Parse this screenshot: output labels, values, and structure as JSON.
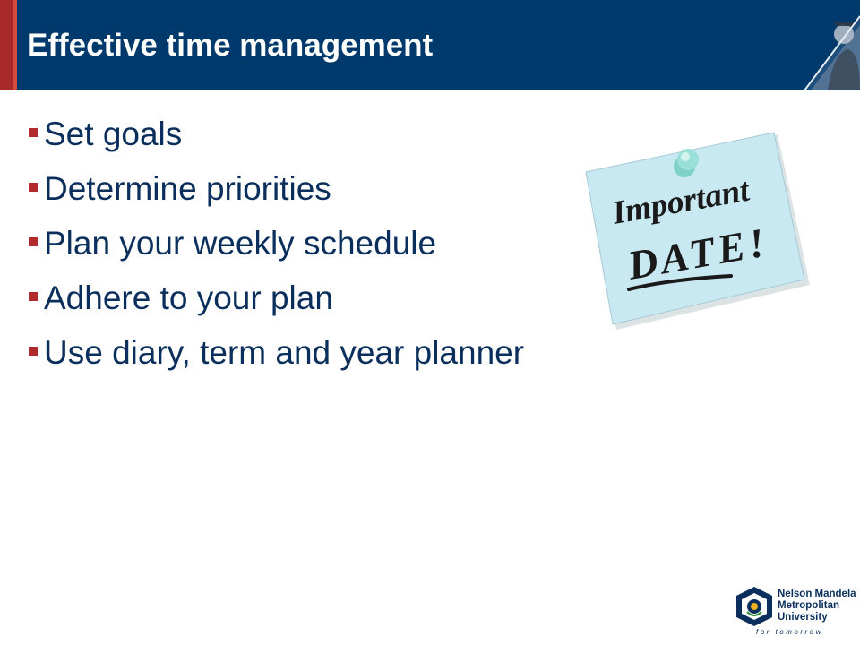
{
  "slide": {
    "title": "Effective time management",
    "bullets": [
      "Set goals",
      "Determine priorities",
      "Plan your weekly schedule",
      "Adhere to your plan",
      "Use diary, term and year planner"
    ]
  },
  "note": {
    "line1": "Important",
    "line2": "DATE!"
  },
  "logo": {
    "line1": "Nelson Mandela",
    "line2": "Metropolitan",
    "line3": "University",
    "tagline": "for tomorrow"
  },
  "colors": {
    "header": "#003a6c",
    "accent": "#a8292b",
    "text": "#0a2f5c",
    "note": "#c9e9f2"
  }
}
